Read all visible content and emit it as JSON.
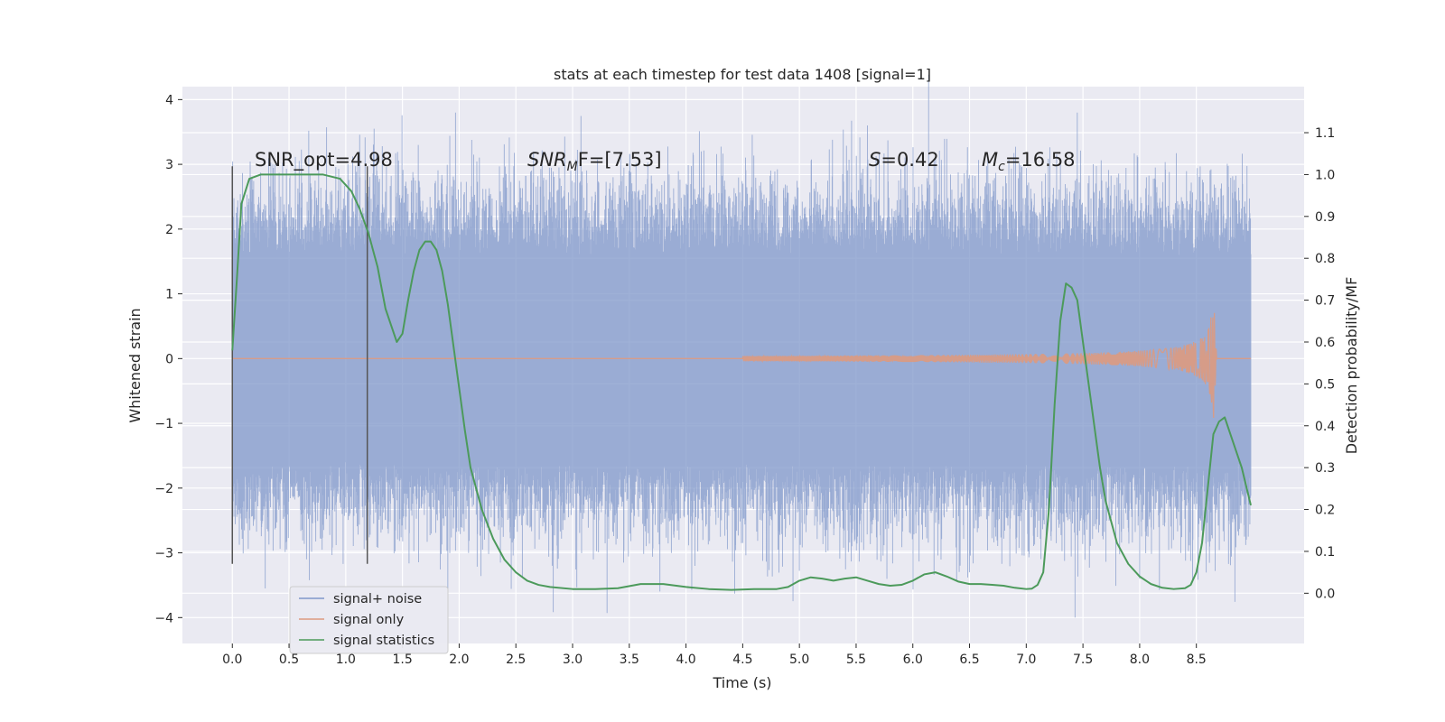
{
  "chart_data": {
    "type": "line",
    "title": "stats at each timestep for test data 1408 [signal=1]",
    "xlabel": "Time (s)",
    "ylabel": "Whitened strain",
    "y2label": "Detection probability/MF",
    "xlim": [
      -0.44,
      9.45
    ],
    "ylim": [
      -4.4,
      4.2
    ],
    "y2lim": [
      -0.12,
      1.21
    ],
    "x_ticks": [
      "0.0",
      "0.5",
      "1.0",
      "1.5",
      "2.0",
      "2.5",
      "3.0",
      "3.5",
      "4.0",
      "4.5",
      "5.0",
      "5.5",
      "6.0",
      "6.5",
      "7.0",
      "7.5",
      "8.0",
      "8.5"
    ],
    "y_ticks": [
      "4",
      "3",
      "2",
      "1",
      "0",
      "−1",
      "−2",
      "−3",
      "−4"
    ],
    "y2_ticks": [
      "1.1",
      "1.0",
      "0.9",
      "0.8",
      "0.7",
      "0.6",
      "0.5",
      "0.4",
      "0.3",
      "0.2",
      "0.1",
      "0.0"
    ],
    "grid": true,
    "legend_placement": "lower-left",
    "annotations": {
      "snr_opt": "SNR_opt=4.98",
      "snr_mf_label": "SNR",
      "snr_mf_sub": "M",
      "snr_mf_value": "F=[7.53]",
      "s_label": "S",
      "s_value": "=0.42",
      "mc_label": "M",
      "mc_sub": "c",
      "mc_value": "=16.58"
    },
    "window_markers_x": [
      0.0,
      1.19
    ],
    "series": [
      {
        "name": "signal+ noise",
        "color": "#7f97c9",
        "x_range": [
          0.0,
          8.98
        ],
        "band_upper_typical": 1.6,
        "band_lower_typical": -1.6,
        "extremes": [
          {
            "x": 0.29,
            "y": -3.55
          },
          {
            "x": 1.25,
            "y": 3.55
          },
          {
            "x": 1.9,
            "y": -3.55
          },
          {
            "x": 5.6,
            "y": 3.6
          },
          {
            "x": 7.45,
            "y": 3.8
          },
          {
            "x": 7.43,
            "y": -4.0
          },
          {
            "x": 2.82,
            "y": -3.2
          },
          {
            "x": 8.0,
            "y": -3.4
          },
          {
            "x": 6.5,
            "y": -3.3
          }
        ]
      },
      {
        "name": "signal only",
        "color": "#dd9a80",
        "x_range": [
          0.0,
          8.98
        ],
        "chirp_start": 4.5,
        "merger_x": 8.65,
        "peak_amplitude": 1.0
      },
      {
        "name": "signal statistics",
        "color": "#4c9a5b",
        "axis": "right",
        "x": [
          0.0,
          0.04,
          0.08,
          0.15,
          0.25,
          0.4,
          0.6,
          0.8,
          0.95,
          1.05,
          1.12,
          1.2,
          1.28,
          1.35,
          1.4,
          1.45,
          1.5,
          1.55,
          1.6,
          1.65,
          1.7,
          1.75,
          1.8,
          1.85,
          1.9,
          1.95,
          2.0,
          2.05,
          2.1,
          2.2,
          2.3,
          2.4,
          2.5,
          2.6,
          2.7,
          2.8,
          3.0,
          3.2,
          3.4,
          3.6,
          3.8,
          4.0,
          4.2,
          4.4,
          4.6,
          4.8,
          4.9,
          5.0,
          5.1,
          5.2,
          5.3,
          5.4,
          5.5,
          5.6,
          5.7,
          5.8,
          5.9,
          6.0,
          6.1,
          6.2,
          6.3,
          6.4,
          6.5,
          6.6,
          6.7,
          6.8,
          6.9,
          7.0,
          7.05,
          7.1,
          7.15,
          7.2,
          7.25,
          7.3,
          7.35,
          7.4,
          7.45,
          7.5,
          7.55,
          7.6,
          7.65,
          7.7,
          7.8,
          7.9,
          8.0,
          8.1,
          8.2,
          8.3,
          8.4,
          8.45,
          8.5,
          8.55,
          8.6,
          8.65,
          8.7,
          8.75,
          8.8,
          8.9,
          8.98
        ],
        "y": [
          0.58,
          0.75,
          0.93,
          0.99,
          1.0,
          1.0,
          1.0,
          1.0,
          0.99,
          0.96,
          0.92,
          0.86,
          0.78,
          0.68,
          0.64,
          0.6,
          0.62,
          0.7,
          0.77,
          0.82,
          0.84,
          0.84,
          0.82,
          0.77,
          0.69,
          0.59,
          0.49,
          0.39,
          0.3,
          0.2,
          0.13,
          0.08,
          0.05,
          0.03,
          0.02,
          0.015,
          0.01,
          0.01,
          0.012,
          0.022,
          0.022,
          0.015,
          0.01,
          0.008,
          0.01,
          0.01,
          0.015,
          0.03,
          0.038,
          0.035,
          0.03,
          0.035,
          0.038,
          0.03,
          0.022,
          0.018,
          0.02,
          0.03,
          0.045,
          0.05,
          0.04,
          0.028,
          0.022,
          0.022,
          0.02,
          0.018,
          0.013,
          0.01,
          0.011,
          0.02,
          0.05,
          0.2,
          0.45,
          0.65,
          0.74,
          0.73,
          0.7,
          0.6,
          0.5,
          0.4,
          0.3,
          0.22,
          0.12,
          0.07,
          0.04,
          0.022,
          0.013,
          0.01,
          0.012,
          0.02,
          0.05,
          0.12,
          0.25,
          0.38,
          0.41,
          0.42,
          0.38,
          0.3,
          0.21
        ]
      }
    ]
  }
}
